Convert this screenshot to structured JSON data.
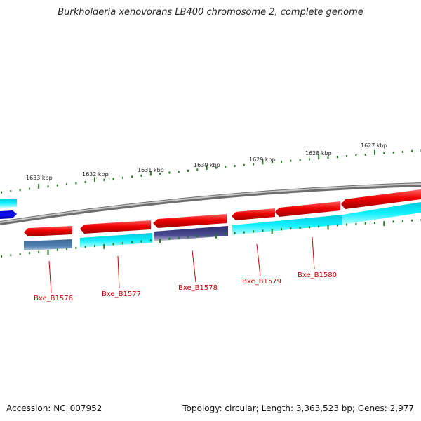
{
  "title": "Burkholderia xenovorans LB400 chromosome 2, complete genome",
  "footer": {
    "accession": "Accession: NC_007952",
    "summary": "Topology: circular; Length: 3,363,523 bp; Genes: 2,977"
  },
  "colors": {
    "backbone": "#8a8a8a",
    "tick": "#1f7a1f",
    "forward_gene": "#e60000",
    "cds_cyan": "#00e5ee",
    "cds_steel": "#4a7aa6",
    "cds_navy": "#3a3a80",
    "label": "#cc0000"
  },
  "scale_labels": [
    "1633 kbp",
    "1632 kbp",
    "1631 kbp",
    "1630 kbp",
    "1629 kbp",
    "1628 kbp",
    "1627 kbp"
  ],
  "gene_labels": [
    "Bxe_B1576",
    "Bxe_B1577",
    "Bxe_B1578",
    "Bxe_B1579",
    "Bxe_B1580"
  ]
}
